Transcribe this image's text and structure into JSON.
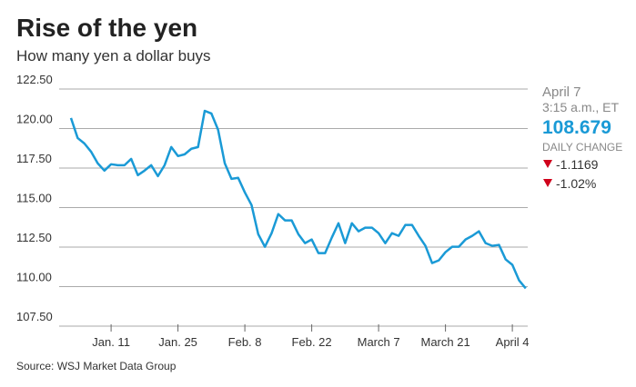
{
  "chart_data": {
    "type": "line",
    "title": "Rise of the yen",
    "subtitle": "How many yen a dollar buys",
    "source": "Source: WSJ Market Data Group",
    "annotations": {
      "date": "April 7",
      "time": "3:15 a.m., ET",
      "price": "108.679",
      "change_label": "DAILY CHANGE",
      "change": "-1.1169",
      "change_pct": "-1.02%"
    },
    "categories": [
      null,
      null,
      null,
      null,
      null,
      null,
      "Jan. 11",
      null,
      null,
      null,
      null,
      null,
      null,
      null,
      null,
      null,
      "Jan. 25",
      null,
      null,
      null,
      null,
      null,
      null,
      null,
      null,
      null,
      "Feb. 8",
      null,
      null,
      null,
      null,
      null,
      null,
      null,
      null,
      null,
      "Feb. 22",
      null,
      null,
      null,
      null,
      null,
      null,
      null,
      null,
      null,
      "March 7",
      null,
      null,
      null,
      null,
      null,
      null,
      null,
      null,
      null,
      "March 21",
      null,
      null,
      null,
      null,
      null,
      null,
      null,
      null,
      null,
      "April 4",
      null,
      null
    ],
    "series": [
      {
        "color": "#1a9ad6",
        "values": [
          120.67,
          119.4,
          119.06,
          118.54,
          117.8,
          117.34,
          117.74,
          117.68,
          117.68,
          118.08,
          117.05,
          117.34,
          117.68,
          116.99,
          117.68,
          118.83,
          118.26,
          118.37,
          118.72,
          118.83,
          121.12,
          120.95,
          119.92,
          117.8,
          116.82,
          116.88,
          115.96,
          115.16,
          113.32,
          112.52,
          113.38,
          114.59,
          114.19,
          114.19,
          113.32,
          112.75,
          112.98,
          112.12,
          112.12,
          113.1,
          114.01,
          112.75,
          114.01,
          113.5,
          113.73,
          113.73,
          113.38,
          112.75,
          113.38,
          113.21,
          113.9,
          113.9,
          113.21,
          112.58,
          111.49,
          111.66,
          112.18,
          112.52,
          112.52,
          112.98,
          113.21,
          113.5,
          112.75,
          112.58,
          112.64,
          111.72,
          111.38,
          110.4,
          109.89
        ]
      }
    ],
    "ylim": [
      107.5,
      122.5
    ],
    "yticks": [
      {
        "value": 107.5,
        "label": "107.50"
      },
      {
        "value": 110,
        "label": "110.00"
      },
      {
        "value": 112.5,
        "label": "112.50"
      },
      {
        "value": 115,
        "label": "115.00"
      },
      {
        "value": 117.5,
        "label": "117.50"
      },
      {
        "value": 120,
        "label": "120.00"
      },
      {
        "value": 122.5,
        "label": "122.50"
      }
    ],
    "grid": true
  }
}
